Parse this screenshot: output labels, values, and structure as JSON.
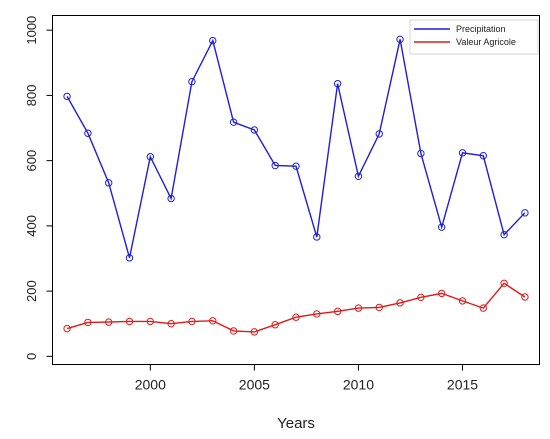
{
  "chart_data": {
    "type": "line",
    "xlabel": "Years",
    "ylabel": "",
    "xlim": [
      1995.3,
      2018.7
    ],
    "ylim": [
      -25,
      1045
    ],
    "x_ticks": [
      2000,
      2005,
      2010,
      2015
    ],
    "y_ticks": [
      0,
      200,
      400,
      600,
      800,
      1000
    ],
    "grid": false,
    "legend_position": "top-right",
    "x": [
      1996,
      1997,
      1998,
      1999,
      2000,
      2001,
      2002,
      2003,
      2004,
      2005,
      2006,
      2007,
      2008,
      2009,
      2010,
      2011,
      2012,
      2013,
      2014,
      2015,
      2016,
      2017,
      2018
    ],
    "series": [
      {
        "name": "Precipitation",
        "color": "#1f1fd6",
        "values": [
          797,
          684,
          532,
          302,
          612,
          484,
          842,
          968,
          718,
          694,
          585,
          583,
          366,
          836,
          552,
          682,
          972,
          622,
          396,
          624,
          615,
          373,
          440
        ]
      },
      {
        "name": "Valeur Agricole",
        "color": "#e01a1a",
        "values": [
          85,
          104,
          105,
          107,
          107,
          100,
          107,
          109,
          78,
          75,
          97,
          120,
          130,
          138,
          148,
          150,
          164,
          181,
          193,
          170,
          148,
          224,
          182
        ]
      }
    ]
  }
}
